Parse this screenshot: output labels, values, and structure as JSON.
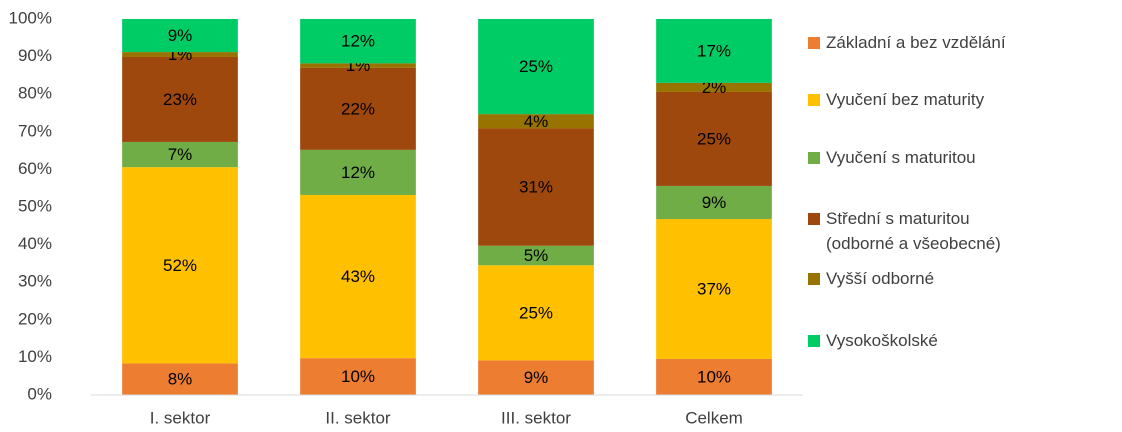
{
  "chart_data": {
    "type": "stacked_bar",
    "categories": [
      "I. sektor",
      "II. sektor",
      "III. sektor",
      "Celkem"
    ],
    "series": [
      {
        "name": "Základní a bez vzdělání",
        "color": "#ed7d31",
        "values": [
          8.4,
          9.8,
          9.2,
          9.6
        ],
        "value_labels": [
          "8%",
          "10%",
          "9%",
          "10%"
        ]
      },
      {
        "name": "Vyučení bez maturity",
        "color": "#ffc000",
        "values": [
          52.2,
          43.4,
          25.3,
          37.2
        ],
        "value_labels": [
          "52%",
          "43%",
          "25%",
          "37%"
        ]
      },
      {
        "name": "Vyučení s maturitou",
        "color": "#70ad47",
        "values": [
          6.7,
          12.0,
          5.2,
          8.8
        ],
        "value_labels": [
          "7%",
          "12%",
          "5%",
          "9%"
        ]
      },
      {
        "name": "Střední s maturitou (odborné a všeobecné)",
        "color": "#9e480e",
        "values": [
          22.6,
          21.8,
          31.2,
          25.0
        ],
        "value_labels": [
          "23%",
          "22%",
          "31%",
          "25%"
        ]
      },
      {
        "name": "Vyšší odborné",
        "color": "#997300",
        "values": [
          1.3,
          1.2,
          3.8,
          2.4
        ],
        "value_labels": [
          "1%",
          "1%",
          "4%",
          "2%"
        ]
      },
      {
        "name": "Vysokoškolské",
        "color": "#00cc66",
        "values": [
          8.8,
          11.8,
          25.3,
          17.0
        ],
        "value_labels": [
          "9%",
          "12%",
          "25%",
          "17%"
        ]
      }
    ],
    "ylim": [
      0,
      100
    ],
    "yticks": [
      {
        "value": 0,
        "label": "0%"
      },
      {
        "value": 10,
        "label": "10%"
      },
      {
        "value": 20,
        "label": "20%"
      },
      {
        "value": 30,
        "label": "30%"
      },
      {
        "value": 40,
        "label": "40%"
      },
      {
        "value": 50,
        "label": "50%"
      },
      {
        "value": 60,
        "label": "60%"
      },
      {
        "value": 70,
        "label": "70%"
      },
      {
        "value": 80,
        "label": "80%"
      },
      {
        "value": 90,
        "label": "90%"
      },
      {
        "value": 100,
        "label": "100%"
      }
    ],
    "grid": false,
    "legend": "right"
  }
}
